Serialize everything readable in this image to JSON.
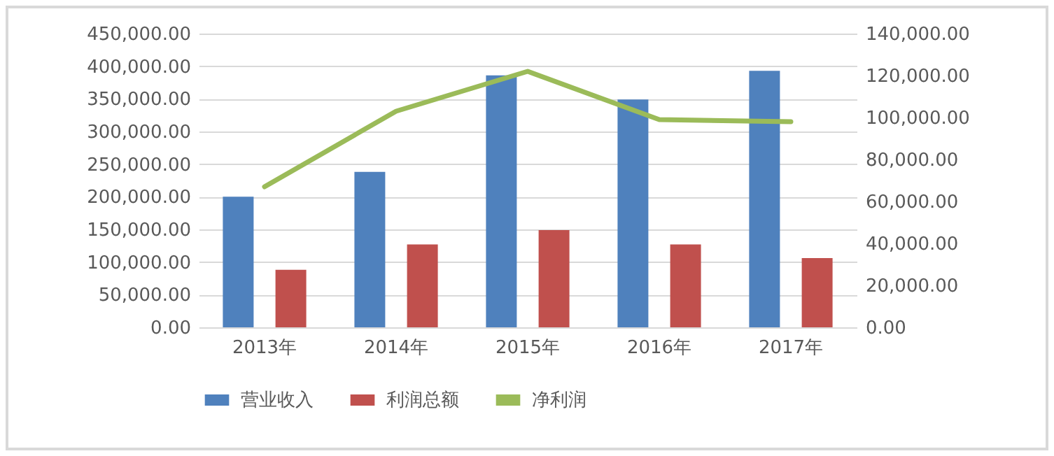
{
  "chart_data": {
    "type": "bar",
    "categories": [
      "2013年",
      "2014年",
      "2015年",
      "2016年",
      "2017年"
    ],
    "series": [
      {
        "name": "营业收入",
        "color": "#4f81bd",
        "values": [
          200000,
          238000,
          386000,
          349000,
          393000
        ]
      },
      {
        "name": "利润总额",
        "color": "#c0504d",
        "values": [
          88000,
          127000,
          149000,
          127000,
          106000
        ]
      },
      {
        "name": "净利润",
        "type": "line",
        "axis": "y2",
        "color": "#9bbb59",
        "values": [
          67000,
          103000,
          122000,
          99000,
          98000
        ]
      }
    ],
    "ylim": [
      0,
      450000
    ],
    "yticks": [
      {
        "value": 0,
        "label": "0.00"
      },
      {
        "value": 50000,
        "label": "50,000.00"
      },
      {
        "value": 100000,
        "label": "100,000.00"
      },
      {
        "value": 150000,
        "label": "150,000.00"
      },
      {
        "value": 200000,
        "label": "200,000.00"
      },
      {
        "value": 250000,
        "label": "250,000.00"
      },
      {
        "value": 300000,
        "label": "300,000.00"
      },
      {
        "value": 350000,
        "label": "350,000.00"
      },
      {
        "value": 400000,
        "label": "400,000.00"
      },
      {
        "value": 450000,
        "label": "450,000.00"
      }
    ],
    "y2lim": [
      0,
      140000
    ],
    "y2ticks": [
      {
        "value": 0,
        "label": "0.00"
      },
      {
        "value": 20000,
        "label": "20,000.00"
      },
      {
        "value": 40000,
        "label": "40,000.00"
      },
      {
        "value": 60000,
        "label": "60,000.00"
      },
      {
        "value": 80000,
        "label": "80,000.00"
      },
      {
        "value": 100000,
        "label": "100,000.00"
      },
      {
        "value": 120000,
        "label": "120,000.00"
      },
      {
        "value": 140000,
        "label": "140,000.00"
      }
    ],
    "grid": "y",
    "legend": "bottom",
    "marker": "none",
    "line_style": "solid"
  }
}
